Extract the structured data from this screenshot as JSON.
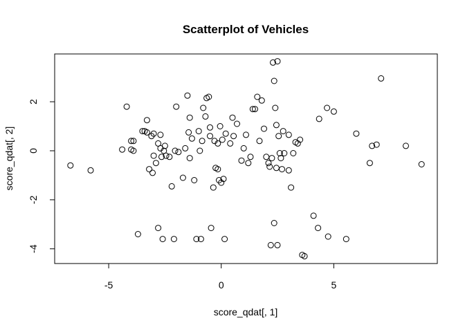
{
  "chart_data": {
    "type": "scatter",
    "title": "Scatterplot of Vehicles",
    "xlabel": "score_qdat[, 1]",
    "ylabel": "score_qdat[, 2]",
    "xlim": [
      -7.4,
      9.6
    ],
    "ylim": [
      -4.6,
      3.95
    ],
    "xticks": [
      -5,
      0,
      5
    ],
    "xtick_labels": [
      "-5",
      "0",
      "5"
    ],
    "yticks": [
      -4,
      -2,
      0,
      2
    ],
    "ytick_labels": [
      "-4",
      "-2",
      "0",
      "2"
    ],
    "grid": false,
    "legend": "none",
    "marker": "open-circle",
    "series": [
      {
        "points": [
          [
            -6.7,
            -0.6
          ],
          [
            -5.8,
            -0.8
          ],
          [
            -4.4,
            0.05
          ],
          [
            -4.2,
            1.8
          ],
          [
            -4.0,
            0.05
          ],
          [
            -4.0,
            0.4
          ],
          [
            -3.9,
            0.4
          ],
          [
            -3.9,
            0.0
          ],
          [
            -3.7,
            -3.4
          ],
          [
            -3.5,
            0.8
          ],
          [
            -3.4,
            0.8
          ],
          [
            -3.3,
            0.75
          ],
          [
            -3.3,
            1.25
          ],
          [
            -3.2,
            -0.75
          ],
          [
            -3.1,
            0.6
          ],
          [
            -3.05,
            -0.9
          ],
          [
            -3.0,
            -0.2
          ],
          [
            -3.0,
            0.7
          ],
          [
            -2.9,
            -0.5
          ],
          [
            -2.8,
            -3.15
          ],
          [
            -2.8,
            0.3
          ],
          [
            -2.7,
            0.65
          ],
          [
            -2.7,
            0.1
          ],
          [
            -2.6,
            -3.6
          ],
          [
            -2.65,
            -0.25
          ],
          [
            -2.55,
            0.0
          ],
          [
            -2.5,
            0.2
          ],
          [
            -2.45,
            -0.2
          ],
          [
            -2.3,
            -0.25
          ],
          [
            -2.2,
            -1.45
          ],
          [
            -2.1,
            -3.6
          ],
          [
            -2.0,
            1.8
          ],
          [
            -2.05,
            0.0
          ],
          [
            -1.9,
            -0.05
          ],
          [
            -1.7,
            -1.1
          ],
          [
            -1.6,
            0.1
          ],
          [
            -1.5,
            2.25
          ],
          [
            -1.45,
            0.75
          ],
          [
            -1.4,
            1.35
          ],
          [
            -1.4,
            -0.3
          ],
          [
            -1.3,
            0.5
          ],
          [
            -1.2,
            -1.2
          ],
          [
            -1.1,
            -3.6
          ],
          [
            -1.0,
            0.8
          ],
          [
            -0.95,
            0.0
          ],
          [
            -0.9,
            -3.6
          ],
          [
            -0.85,
            0.4
          ],
          [
            -0.8,
            1.75
          ],
          [
            -0.7,
            1.4
          ],
          [
            -0.65,
            2.15
          ],
          [
            -0.55,
            2.2
          ],
          [
            -0.5,
            0.95
          ],
          [
            -0.5,
            0.6
          ],
          [
            -0.45,
            -3.15
          ],
          [
            -0.35,
            -1.5
          ],
          [
            -0.3,
            0.4
          ],
          [
            -0.25,
            -0.7
          ],
          [
            -0.15,
            -0.75
          ],
          [
            -0.15,
            0.3
          ],
          [
            -0.1,
            -1.2
          ],
          [
            -0.05,
            1.0
          ],
          [
            0.0,
            -1.3
          ],
          [
            0.05,
            0.45
          ],
          [
            0.1,
            -1.15
          ],
          [
            0.15,
            -3.6
          ],
          [
            0.2,
            0.7
          ],
          [
            0.4,
            0.3
          ],
          [
            0.5,
            1.35
          ],
          [
            0.55,
            0.6
          ],
          [
            0.7,
            1.1
          ],
          [
            0.9,
            -0.4
          ],
          [
            1.0,
            0.1
          ],
          [
            1.1,
            0.65
          ],
          [
            1.2,
            -0.5
          ],
          [
            1.3,
            -0.25
          ],
          [
            1.4,
            1.7
          ],
          [
            1.5,
            1.7
          ],
          [
            1.6,
            2.2
          ],
          [
            1.7,
            0.4
          ],
          [
            1.8,
            2.05
          ],
          [
            1.9,
            0.9
          ],
          [
            2.0,
            -0.25
          ],
          [
            2.1,
            -0.5
          ],
          [
            2.15,
            -0.65
          ],
          [
            2.2,
            -3.85
          ],
          [
            2.25,
            -0.3
          ],
          [
            2.3,
            3.6
          ],
          [
            2.35,
            2.85
          ],
          [
            2.35,
            -2.95
          ],
          [
            2.4,
            1.75
          ],
          [
            2.45,
            -0.7
          ],
          [
            2.45,
            1.05
          ],
          [
            2.5,
            3.65
          ],
          [
            2.5,
            -3.85
          ],
          [
            2.55,
            0.6
          ],
          [
            2.6,
            -0.1
          ],
          [
            2.65,
            -0.3
          ],
          [
            2.7,
            -0.75
          ],
          [
            2.75,
            0.8
          ],
          [
            2.8,
            -0.1
          ],
          [
            3.0,
            -0.8
          ],
          [
            3.0,
            0.65
          ],
          [
            3.1,
            -1.5
          ],
          [
            3.2,
            -0.1
          ],
          [
            3.3,
            0.35
          ],
          [
            3.4,
            0.3
          ],
          [
            3.5,
            0.45
          ],
          [
            3.6,
            -4.25
          ],
          [
            3.7,
            -4.3
          ],
          [
            4.1,
            -2.65
          ],
          [
            4.3,
            -3.15
          ],
          [
            4.35,
            1.3
          ],
          [
            4.7,
            1.75
          ],
          [
            4.75,
            -3.5
          ],
          [
            5.0,
            1.6
          ],
          [
            5.55,
            -3.6
          ],
          [
            6.0,
            0.7
          ],
          [
            6.6,
            -0.5
          ],
          [
            6.7,
            0.2
          ],
          [
            6.9,
            0.25
          ],
          [
            7.1,
            2.95
          ],
          [
            8.2,
            0.2
          ],
          [
            8.9,
            -0.55
          ]
        ]
      }
    ]
  }
}
